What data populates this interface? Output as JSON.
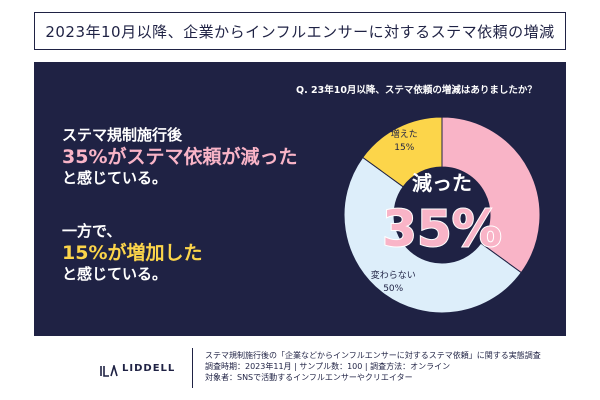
{
  "header": {
    "title": "2023年10月以降、企業からインフルエンサーに対するステマ依頼の増減"
  },
  "question": "Q. 23年10月以降、ステマ依頼の増減はありましたか？",
  "message1": {
    "line1": "ステマ規制施行後",
    "line2": "35%がステマ依頼が減った",
    "line3": "と感じている。"
  },
  "message2": {
    "line1": "一方で、",
    "line2": "15%が増加した",
    "line3": "と感じている。"
  },
  "chart_data": {
    "type": "pie",
    "subtype": "donut",
    "categories": [
      "減った",
      "変わらない",
      "増えた"
    ],
    "values": [
      35,
      50,
      15
    ],
    "value_labels": [
      "35%",
      "50%",
      "15%"
    ],
    "colors": [
      "#f9b4c7",
      "#ddeefa",
      "#fcd54a"
    ],
    "center_label": "減った",
    "center_value": "35%"
  },
  "footer": {
    "logo_text": "LIDDELL",
    "line1": "ステマ規制施行後の「企業などからインフルエンサーに対するステマ依頼」に関する実態調査",
    "line2": "調査時期：2023年11月 | サンプル数：100 | 調査方法：オンライン",
    "line3": "対象者：SNSで活動するインフルエンサーやクリエイター"
  }
}
